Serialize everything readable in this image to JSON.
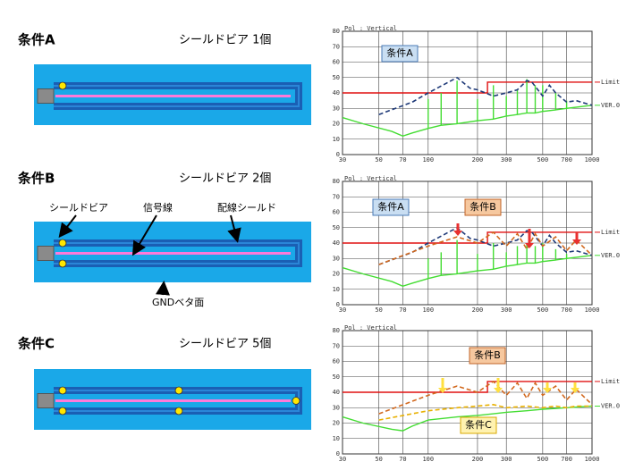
{
  "panels": [
    {
      "label": "条件A",
      "subtitle": "シールドビア 1個"
    },
    {
      "label": "条件B",
      "subtitle": "シールドビア 2個",
      "callouts": [
        "シールドビア",
        "信号線",
        "配線シールド",
        "GNDベタ面"
      ]
    },
    {
      "label": "条件C",
      "subtitle": "シールドビア 5個"
    }
  ],
  "chart_data": [
    {
      "type": "line",
      "title": "Pol : Vertical",
      "log_x": true,
      "grid": true,
      "xlim": [
        30,
        1000
      ],
      "xticks": [
        30,
        50,
        70,
        100,
        200,
        300,
        500,
        700,
        1000
      ],
      "ylim": [
        0,
        80
      ],
      "yticks": [
        0,
        10,
        20,
        30,
        40,
        50,
        60,
        70,
        80
      ],
      "series": [
        {
          "name": "Limit",
          "color": "#e01010",
          "x": [
            30,
            230,
            230,
            1000
          ],
          "values": [
            40,
            40,
            47,
            47
          ]
        },
        {
          "name": "VER.0",
          "color": "#44dd33",
          "x": [
            30,
            40,
            60,
            70,
            80,
            100,
            100,
            100,
            120,
            120,
            120,
            150,
            150,
            150,
            200,
            200,
            200,
            250,
            250,
            250,
            300,
            300,
            300,
            350,
            350,
            350,
            400,
            400,
            400,
            450,
            450,
            450,
            500,
            500,
            500,
            600,
            600,
            600,
            700,
            700,
            700,
            1000
          ],
          "values": [
            24,
            20,
            15,
            12,
            14,
            17,
            36,
            17,
            19,
            40,
            19,
            20,
            48,
            20,
            22,
            36,
            22,
            23,
            45,
            23,
            25,
            38,
            25,
            26,
            42,
            26,
            27,
            49,
            27,
            27,
            45,
            27,
            28,
            45,
            28,
            29,
            40,
            29,
            30,
            35,
            30,
            32
          ]
        },
        {
          "name": "条件A",
          "color": "#1f3a78",
          "dash": true,
          "label_fill": "#c9def2",
          "label_border": "#4a7bb7",
          "x": [
            50,
            80,
            100,
            150,
            180,
            200,
            250,
            300,
            350,
            400,
            430,
            500,
            550,
            600,
            700,
            800,
            1000
          ],
          "values": [
            26,
            34,
            40,
            50,
            43,
            42,
            38,
            40,
            42,
            48,
            47,
            38,
            45,
            40,
            34,
            35,
            32
          ]
        }
      ]
    },
    {
      "type": "line",
      "title": "Pol : Vertical",
      "log_x": true,
      "grid": true,
      "xlim": [
        30,
        1000
      ],
      "xticks": [
        30,
        50,
        70,
        100,
        200,
        300,
        500,
        700,
        1000
      ],
      "ylim": [
        0,
        80
      ],
      "yticks": [
        0,
        10,
        20,
        30,
        40,
        50,
        60,
        70,
        80
      ],
      "series": [
        {
          "name": "Limit",
          "color": "#e01010",
          "x": [
            30,
            230,
            230,
            1000
          ],
          "values": [
            40,
            40,
            47,
            47
          ]
        },
        {
          "name": "VER.0",
          "color": "#44dd33",
          "x": [
            30,
            40,
            60,
            70,
            80,
            100,
            100,
            100,
            120,
            120,
            120,
            150,
            150,
            150,
            200,
            200,
            200,
            250,
            250,
            250,
            300,
            300,
            300,
            350,
            350,
            350,
            400,
            400,
            400,
            450,
            450,
            450,
            500,
            500,
            500,
            600,
            600,
            600,
            700,
            700,
            700,
            1000
          ],
          "values": [
            24,
            20,
            15,
            12,
            14,
            17,
            30,
            17,
            19,
            34,
            19,
            20,
            42,
            20,
            22,
            33,
            22,
            23,
            40,
            23,
            25,
            34,
            25,
            26,
            38,
            26,
            27,
            40,
            27,
            27,
            38,
            27,
            28,
            40,
            28,
            29,
            36,
            29,
            30,
            33,
            30,
            32
          ]
        },
        {
          "name": "条件A",
          "color": "#1f3a78",
          "dash": true,
          "label_fill": "#c9def2",
          "label_border": "#4a7bb7",
          "x": [
            50,
            80,
            100,
            150,
            180,
            200,
            250,
            300,
            350,
            400,
            430,
            500,
            550,
            600,
            700,
            800,
            1000
          ],
          "values": [
            26,
            34,
            40,
            50,
            43,
            42,
            38,
            40,
            42,
            48,
            47,
            38,
            45,
            40,
            34,
            35,
            32
          ]
        },
        {
          "name": "条件B",
          "color": "#d2691e",
          "dash": true,
          "label_fill": "#f6c89f",
          "label_border": "#c0652a",
          "x": [
            50,
            100,
            150,
            200,
            250,
            300,
            350,
            400,
            450,
            500,
            600,
            700,
            800,
            1000
          ],
          "values": [
            26,
            38,
            44,
            40,
            47,
            38,
            46,
            36,
            46,
            38,
            44,
            35,
            42,
            32
          ]
        }
      ]
    },
    {
      "type": "line",
      "title": "Pol : Vertical",
      "log_x": true,
      "grid": true,
      "xlim": [
        30,
        1000
      ],
      "xticks": [
        30,
        50,
        70,
        100,
        200,
        300,
        500,
        700,
        1000
      ],
      "ylim": [
        0,
        80
      ],
      "yticks": [
        0,
        10,
        20,
        30,
        40,
        50,
        60,
        70,
        80
      ],
      "series": [
        {
          "name": "Limit",
          "color": "#e01010",
          "x": [
            30,
            230,
            230,
            1000
          ],
          "values": [
            40,
            40,
            47,
            47
          ]
        },
        {
          "name": "VER.0",
          "color": "#44dd33",
          "x": [
            30,
            40,
            60,
            70,
            80,
            100,
            150,
            200,
            250,
            300,
            400,
            500,
            700,
            1000
          ],
          "values": [
            24,
            20,
            16,
            15,
            18,
            22,
            24,
            25,
            26,
            27,
            28,
            29,
            30,
            31
          ]
        },
        {
          "name": "条件B",
          "color": "#d2691e",
          "dash": true,
          "label_fill": "#f6c89f",
          "label_border": "#c0652a",
          "x": [
            50,
            100,
            150,
            200,
            250,
            300,
            350,
            400,
            450,
            500,
            600,
            700,
            800,
            1000
          ],
          "values": [
            26,
            38,
            44,
            40,
            47,
            38,
            46,
            36,
            46,
            38,
            44,
            35,
            42,
            32
          ]
        },
        {
          "name": "条件C",
          "color": "#e8b000",
          "dash": true,
          "label_fill": "#fff2b0",
          "label_border": "#d8a800",
          "x": [
            50,
            100,
            150,
            200,
            250,
            300,
            400,
            500,
            600,
            700,
            800,
            1000
          ],
          "values": [
            22,
            28,
            30,
            31,
            32,
            30,
            31,
            30,
            31,
            30,
            31,
            31
          ]
        }
      ]
    }
  ]
}
